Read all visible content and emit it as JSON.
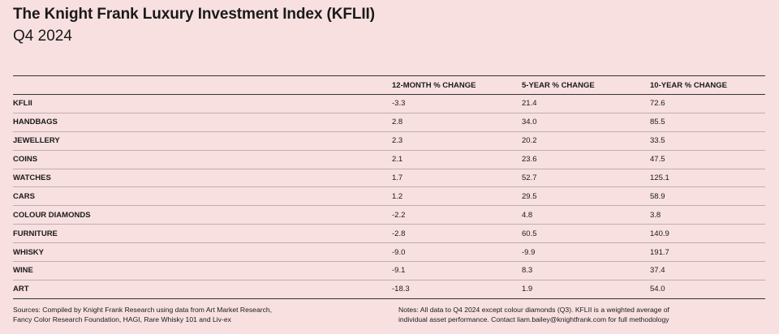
{
  "header": {
    "title": "The Knight Frank Luxury Investment Index (KFLII)",
    "subtitle": "Q4 2024"
  },
  "table": {
    "columns": [
      "",
      "12-MONTH % CHANGE",
      "5-YEAR % CHANGE",
      "10-YEAR % CHANGE"
    ],
    "rows": [
      {
        "asset": "KFLII",
        "m12": "-3.3",
        "y5": "21.4",
        "y10": "72.6"
      },
      {
        "asset": "HANDBAGS",
        "m12": "2.8",
        "y5": "34.0",
        "y10": "85.5"
      },
      {
        "asset": "JEWELLERY",
        "m12": "2.3",
        "y5": "20.2",
        "y10": "33.5"
      },
      {
        "asset": "COINS",
        "m12": "2.1",
        "y5": "23.6",
        "y10": "47.5"
      },
      {
        "asset": "WATCHES",
        "m12": "1.7",
        "y5": "52.7",
        "y10": "125.1"
      },
      {
        "asset": "CARS",
        "m12": "1.2",
        "y5": "29.5",
        "y10": "58.9"
      },
      {
        "asset": "COLOUR DIAMONDS",
        "m12": "-2.2",
        "y5": "4.8",
        "y10": "3.8"
      },
      {
        "asset": "FURNITURE",
        "m12": "-2.8",
        "y5": "60.5",
        "y10": "140.9"
      },
      {
        "asset": "WHISKY",
        "m12": "-9.0",
        "y5": "-9.9",
        "y10": "191.7"
      },
      {
        "asset": "WINE",
        "m12": "-9.1",
        "y5": "8.3",
        "y10": "37.4"
      },
      {
        "asset": "ART",
        "m12": "-18.3",
        "y5": "1.9",
        "y10": "54.0"
      }
    ]
  },
  "footer": {
    "sources_line1": "Sources: Compiled by Knight Frank Research using data from Art Market Research,",
    "sources_line2": "Fancy Color Research Foundation, HAGI, Rare Whisky 101 and Liv-ex",
    "notes_line1": "Notes: All data to Q4 2024 except colour diamonds (Q3). KFLII is a weighted average of",
    "notes_line2": "individual asset performance. Contact liam.bailey@knightfrank.com for full methodology"
  },
  "colors": {
    "background": "#f8e0e0",
    "text": "#1a1a1a",
    "rule": "#333333"
  }
}
